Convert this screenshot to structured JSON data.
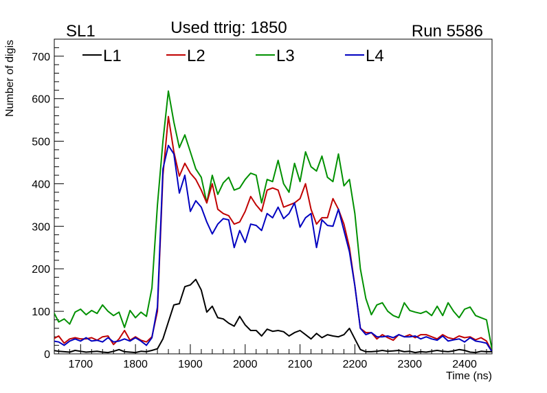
{
  "header": {
    "left_label": "SL1",
    "title": "Used ttrig: 1850",
    "right_label": "Run 5586"
  },
  "chart_data": {
    "type": "line",
    "xlabel": "Time (ns)",
    "ylabel": "Number of digis",
    "xlim": [
      1652,
      2450
    ],
    "ylim": [
      0,
      740
    ],
    "x_ticks": [
      1700,
      1800,
      1900,
      2000,
      2100,
      2200,
      2300,
      2400
    ],
    "y_ticks": [
      0,
      100,
      200,
      300,
      400,
      500,
      600,
      700
    ],
    "grid": false,
    "legend_position": "top",
    "x": [
      1650,
      1660,
      1670,
      1680,
      1690,
      1700,
      1710,
      1720,
      1730,
      1740,
      1750,
      1760,
      1770,
      1780,
      1790,
      1800,
      1810,
      1820,
      1830,
      1840,
      1850,
      1860,
      1870,
      1880,
      1890,
      1900,
      1910,
      1920,
      1930,
      1940,
      1950,
      1960,
      1970,
      1980,
      1990,
      2000,
      2010,
      2020,
      2030,
      2040,
      2050,
      2060,
      2070,
      2080,
      2090,
      2100,
      2110,
      2120,
      2130,
      2140,
      2150,
      2160,
      2170,
      2180,
      2190,
      2200,
      2210,
      2220,
      2230,
      2240,
      2250,
      2260,
      2270,
      2280,
      2290,
      2300,
      2310,
      2320,
      2330,
      2340,
      2350,
      2360,
      2370,
      2380,
      2390,
      2400,
      2410,
      2420,
      2430,
      2440,
      2450
    ],
    "series": [
      {
        "name": "L1",
        "color": "#000000",
        "values": [
          8,
          6,
          5,
          4,
          8,
          6,
          4,
          5,
          6,
          4,
          3,
          6,
          10,
          5,
          4,
          3,
          6,
          5,
          8,
          12,
          35,
          75,
          115,
          118,
          158,
          162,
          175,
          150,
          98,
          112,
          85,
          82,
          72,
          65,
          88,
          68,
          55,
          55,
          42,
          58,
          53,
          55,
          52,
          42,
          50,
          55,
          45,
          35,
          48,
          38,
          45,
          42,
          40,
          45,
          60,
          35,
          10,
          5,
          5,
          6,
          8,
          6,
          7,
          8,
          5,
          6,
          3,
          5,
          4,
          6,
          8,
          6,
          5,
          7,
          10,
          8,
          4,
          3,
          6,
          5,
          5
        ]
      },
      {
        "name": "L2",
        "color": "#c00000",
        "values": [
          35,
          42,
          25,
          35,
          38,
          35,
          35,
          38,
          32,
          40,
          42,
          22,
          35,
          55,
          32,
          40,
          32,
          28,
          40,
          100,
          420,
          558,
          475,
          418,
          448,
          425,
          410,
          385,
          355,
          400,
          340,
          330,
          325,
          305,
          310,
          335,
          370,
          350,
          335,
          385,
          390,
          385,
          345,
          350,
          355,
          365,
          400,
          340,
          305,
          320,
          320,
          365,
          340,
          305,
          250,
          160,
          60,
          50,
          50,
          35,
          45,
          38,
          32,
          45,
          40,
          45,
          38,
          45,
          45,
          40,
          35,
          45,
          38,
          35,
          42,
          38,
          40,
          33,
          38,
          30,
          5
        ]
      },
      {
        "name": "L3",
        "color": "#009000",
        "values": [
          100,
          75,
          82,
          70,
          98,
          105,
          92,
          102,
          95,
          115,
          100,
          90,
          98,
          62,
          102,
          85,
          98,
          88,
          155,
          350,
          500,
          618,
          545,
          485,
          515,
          475,
          435,
          415,
          355,
          420,
          375,
          402,
          415,
          385,
          390,
          410,
          425,
          420,
          355,
          410,
          405,
          455,
          400,
          380,
          448,
          405,
          475,
          440,
          430,
          465,
          415,
          405,
          470,
          395,
          410,
          330,
          200,
          130,
          92,
          115,
          120,
          100,
          90,
          85,
          120,
          102,
          98,
          95,
          100,
          90,
          112,
          90,
          120,
          100,
          85,
          105,
          110,
          90,
          85,
          80,
          10
        ]
      },
      {
        "name": "L4",
        "color": "#0000c0",
        "values": [
          30,
          28,
          20,
          30,
          35,
          30,
          38,
          30,
          32,
          28,
          38,
          28,
          30,
          35,
          30,
          38,
          30,
          20,
          38,
          110,
          435,
          490,
          470,
          378,
          420,
          335,
          360,
          345,
          310,
          282,
          305,
          318,
          315,
          250,
          290,
          262,
          305,
          302,
          290,
          330,
          320,
          345,
          318,
          330,
          355,
          298,
          320,
          330,
          250,
          315,
          302,
          300,
          340,
          290,
          240,
          160,
          60,
          45,
          50,
          40,
          40,
          42,
          38,
          45,
          40,
          40,
          42,
          35,
          40,
          35,
          32,
          42,
          30,
          33,
          35,
          28,
          38,
          30,
          28,
          25,
          5
        ]
      }
    ]
  }
}
